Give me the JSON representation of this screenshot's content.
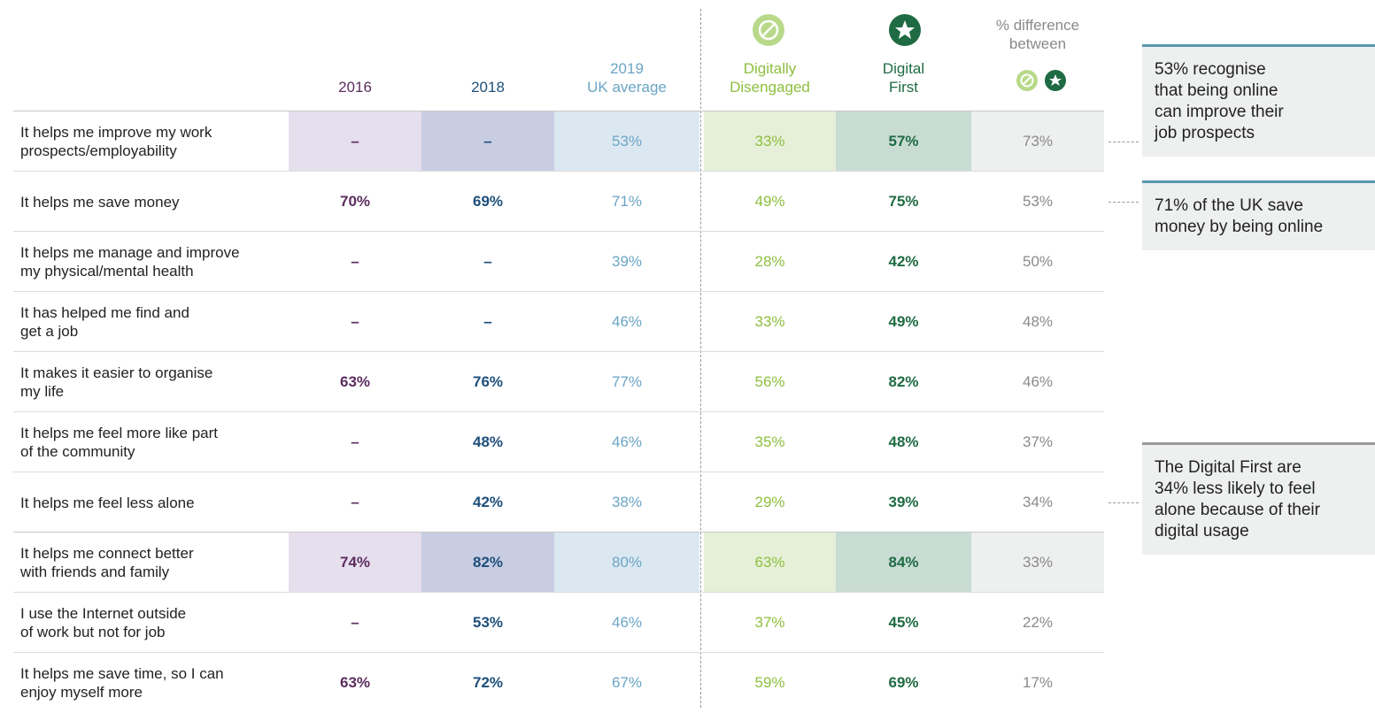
{
  "header": {
    "columns": [
      {
        "lines": [
          "2016"
        ]
      },
      {
        "lines": [
          "2018"
        ]
      },
      {
        "lines": [
          "2019",
          "UK average"
        ]
      },
      {
        "lines": [
          "Digitally",
          "Disengaged"
        ]
      },
      {
        "lines": [
          "Digital",
          "First"
        ]
      },
      {
        "lines": [
          "% difference",
          "between"
        ]
      }
    ]
  },
  "table": {
    "rows": [
      {
        "label": [
          "It helps me improve my work",
          "prospects/employability"
        ],
        "cells": [
          "–",
          "–",
          "53%",
          "33%",
          "57%",
          "73%"
        ],
        "highlight": true
      },
      {
        "label": [
          "It helps me save money"
        ],
        "cells": [
          "70%",
          "69%",
          "71%",
          "49%",
          "75%",
          "53%"
        ]
      },
      {
        "label": [
          "It helps me manage and improve",
          "my physical/mental health"
        ],
        "cells": [
          "–",
          "–",
          "39%",
          "28%",
          "42%",
          "50%"
        ]
      },
      {
        "label": [
          "It has helped me find and",
          "get a job"
        ],
        "cells": [
          "–",
          "–",
          "46%",
          "33%",
          "49%",
          "48%"
        ]
      },
      {
        "label": [
          "It makes it easier to organise",
          "my life"
        ],
        "cells": [
          "63%",
          "76%",
          "77%",
          "56%",
          "82%",
          "46%"
        ]
      },
      {
        "label": [
          "It helps me feel more like part",
          "of the community"
        ],
        "cells": [
          "–",
          "48%",
          "46%",
          "35%",
          "48%",
          "37%"
        ]
      },
      {
        "label": [
          "It helps me feel less alone"
        ],
        "cells": [
          "–",
          "42%",
          "38%",
          "29%",
          "39%",
          "34%"
        ]
      },
      {
        "label": [
          "It helps me connect better",
          "with friends and family"
        ],
        "cells": [
          "74%",
          "82%",
          "80%",
          "63%",
          "84%",
          "33%"
        ],
        "highlight": true
      },
      {
        "label": [
          "I use the Internet outside",
          "of work but not for job"
        ],
        "cells": [
          "–",
          "53%",
          "46%",
          "37%",
          "45%",
          "22%"
        ]
      },
      {
        "label": [
          "It helps me save time, so I can",
          "enjoy myself more"
        ],
        "cells": [
          "63%",
          "72%",
          "67%",
          "59%",
          "69%",
          "17%"
        ]
      }
    ]
  },
  "callouts": [
    {
      "lines": [
        "53% recognise",
        "that being online",
        "can improve their",
        "job prospects"
      ]
    },
    {
      "lines": [
        "71% of the UK save",
        "money by being online"
      ]
    },
    {
      "lines": [
        "The Digital First are",
        "34% less likely to feel",
        "alone because of their",
        "digital usage"
      ]
    }
  ]
}
